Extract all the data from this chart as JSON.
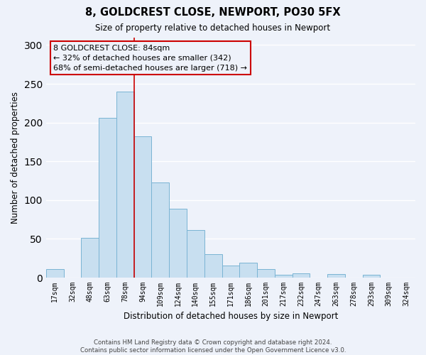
{
  "title": "8, GOLDCREST CLOSE, NEWPORT, PO30 5FX",
  "subtitle": "Size of property relative to detached houses in Newport",
  "xlabel": "Distribution of detached houses by size in Newport",
  "ylabel": "Number of detached properties",
  "bar_color": "#c8dff0",
  "bar_edge_color": "#7ab4d4",
  "categories": [
    "17sqm",
    "32sqm",
    "48sqm",
    "63sqm",
    "78sqm",
    "94sqm",
    "109sqm",
    "124sqm",
    "140sqm",
    "155sqm",
    "171sqm",
    "186sqm",
    "201sqm",
    "217sqm",
    "232sqm",
    "247sqm",
    "263sqm",
    "278sqm",
    "293sqm",
    "309sqm",
    "324sqm"
  ],
  "values": [
    11,
    0,
    51,
    206,
    240,
    182,
    123,
    89,
    61,
    30,
    16,
    19,
    11,
    4,
    6,
    0,
    5,
    0,
    4,
    0,
    0
  ],
  "ylim": [
    0,
    310
  ],
  "yticks": [
    0,
    50,
    100,
    150,
    200,
    250,
    300
  ],
  "annotation_text_line1": "8 GOLDCREST CLOSE: 84sqm",
  "annotation_text_line2": "← 32% of detached houses are smaller (342)",
  "annotation_text_line3": "68% of semi-detached houses are larger (718) →",
  "vline_x_index": 4.5,
  "footer_line1": "Contains HM Land Registry data © Crown copyright and database right 2024.",
  "footer_line2": "Contains public sector information licensed under the Open Government Licence v3.0.",
  "bg_color": "#eef2fa",
  "grid_color": "#ffffff",
  "box_edge_color": "#cc0000"
}
